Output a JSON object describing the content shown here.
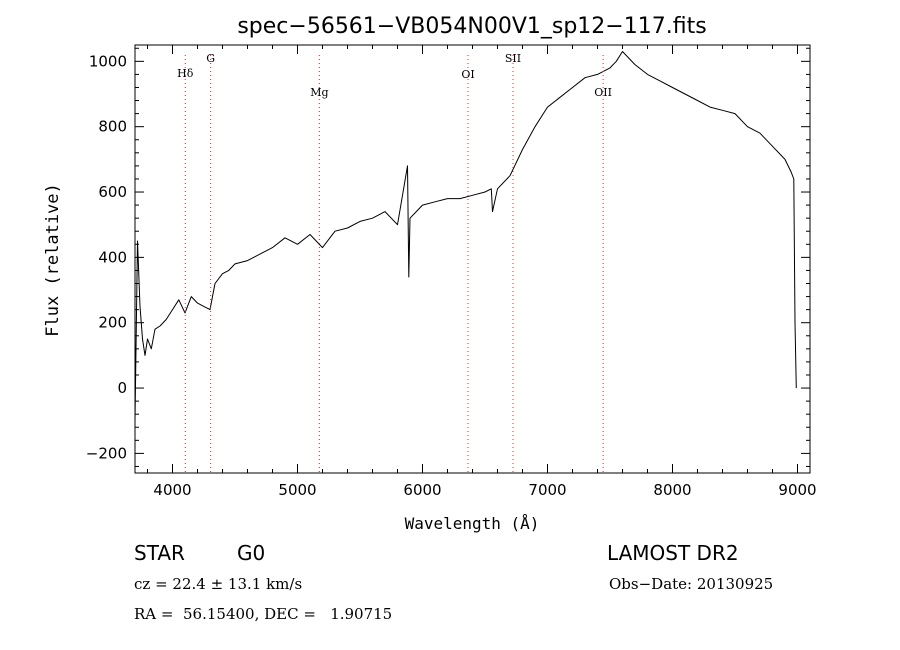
{
  "chart_data": {
    "type": "line",
    "title": "spec−56561−VB054N00V1_sp12−117.fits",
    "xlabel": "Wavelength (Å)",
    "ylabel": "Flux (relative)",
    "xlim": [
      3700,
      9100
    ],
    "ylim": [
      -260,
      1050
    ],
    "xticks": [
      4000,
      5000,
      6000,
      7000,
      8000,
      9000
    ],
    "yticks": [
      -200,
      0,
      200,
      400,
      600,
      800,
      1000
    ],
    "grid": false,
    "line_color": "#000000",
    "marker_color": "#cc3333",
    "series": [
      {
        "x": [
          3700,
          3720,
          3740,
          3760,
          3780,
          3800,
          3830,
          3860,
          3900,
          3950,
          4000,
          4050,
          4100,
          4150,
          4200,
          4250,
          4300,
          4340,
          4400,
          4450,
          4500,
          4600,
          4700,
          4800,
          4900,
          5000,
          5100,
          5200,
          5300,
          5400,
          5500,
          5600,
          5700,
          5800,
          5880,
          5890,
          5900,
          5950,
          6000,
          6100,
          6200,
          6300,
          6400,
          6500,
          6550,
          6560,
          6600,
          6700,
          6800,
          6900,
          7000,
          7100,
          7200,
          7300,
          7400,
          7500,
          7550,
          7600,
          7650,
          7700,
          7800,
          7900,
          8000,
          8100,
          8200,
          8300,
          8400,
          8500,
          8600,
          8700,
          8800,
          8900,
          8950,
          8970,
          8980,
          8990
        ],
        "y": [
          -100,
          450,
          250,
          150,
          100,
          150,
          120,
          180,
          190,
          210,
          240,
          270,
          230,
          280,
          260,
          250,
          240,
          320,
          350,
          360,
          380,
          390,
          410,
          430,
          460,
          440,
          470,
          430,
          480,
          490,
          510,
          520,
          540,
          500,
          680,
          340,
          520,
          540,
          560,
          570,
          580,
          580,
          590,
          600,
          610,
          540,
          610,
          650,
          730,
          800,
          860,
          890,
          920,
          950,
          960,
          980,
          1000,
          1030,
          1010,
          990,
          960,
          940,
          920,
          900,
          880,
          860,
          850,
          840,
          800,
          780,
          740,
          700,
          660,
          640,
          200,
          0
        ]
      }
    ],
    "lines": [
      {
        "label": "Hδ",
        "x": 4102
      },
      {
        "label": "G",
        "x": 4305
      },
      {
        "label": "Mg",
        "x": 5175
      },
      {
        "label": "OI",
        "x": 6364
      },
      {
        "label": "SII",
        "x": 6724
      },
      {
        "label": "OII",
        "x": 7445
      }
    ]
  },
  "info": {
    "class": "STAR",
    "subclass": "G0",
    "survey": "LAMOST DR2",
    "cz": "cz = 22.4 ± 13.1 km/s",
    "obs_date": "Obs−Date: 20130925",
    "coords": "RA =  56.15400, DEC =   1.90715"
  }
}
